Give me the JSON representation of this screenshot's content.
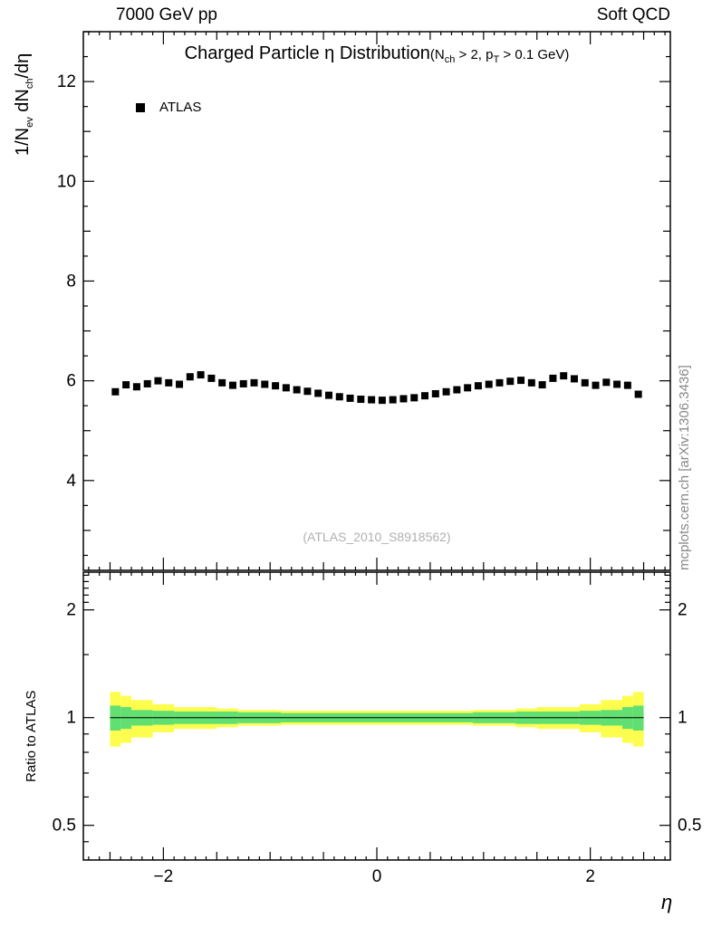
{
  "header": {
    "left": "7000 GeV pp",
    "right": "Soft QCD"
  },
  "credit": "mcplots.cern.ch [arXiv:1306.3436]",
  "watermark": "(ATLAS_2010_S8918562)",
  "xlabel": "η",
  "title": {
    "main": "Charged Particle η Distribution",
    "cut_p1": "(N",
    "cut_s1": "ch",
    "cut_p2": " > 2, p",
    "cut_s2": "T",
    "cut_p3": " > 0.1 GeV)"
  },
  "ylabel": {
    "p1": "1/N",
    "s1": "ev",
    "p2": " dN",
    "s2": "ch",
    "p3": "/dη"
  },
  "ratio_ylabel": "Ratio to ATLAS",
  "legend": {
    "atlas": "ATLAS"
  },
  "colors": {
    "marker": "#000000",
    "band_outer": "#fdfd4d",
    "band_inner": "#62df72",
    "frame": "#000000",
    "watermark": "#b0b0b0",
    "credit": "#888888"
  },
  "chart_data": {
    "type": "scatter",
    "title": "Charged Particle η Distribution (N_ch > 2, p_T > 0.1 GeV)",
    "xlabel": "η",
    "ylabel": "1/N_ev dN_ch/dη",
    "legend_entries": [
      "ATLAS"
    ],
    "grid": false,
    "xlim": [
      -2.75,
      2.75
    ],
    "xticks": [
      -2,
      0,
      2
    ],
    "main_panel": {
      "yscale": "linear",
      "ylim": [
        2.2,
        13.0
      ],
      "yticks": [
        4,
        6,
        8,
        10,
        12
      ],
      "series": [
        {
          "name": "ATLAS",
          "marker": "filled-square",
          "color": "#000000",
          "x": [
            -2.45,
            -2.35,
            -2.25,
            -2.15,
            -2.05,
            -1.95,
            -1.85,
            -1.75,
            -1.65,
            -1.55,
            -1.45,
            -1.35,
            -1.25,
            -1.15,
            -1.05,
            -0.95,
            -0.85,
            -0.75,
            -0.65,
            -0.55,
            -0.45,
            -0.35,
            -0.25,
            -0.15,
            -0.05,
            0.05,
            0.15,
            0.25,
            0.35,
            0.45,
            0.55,
            0.65,
            0.75,
            0.85,
            0.95,
            1.05,
            1.15,
            1.25,
            1.35,
            1.45,
            1.55,
            1.65,
            1.75,
            1.85,
            1.95,
            2.05,
            2.15,
            2.25,
            2.35,
            2.45
          ],
          "y": [
            5.78,
            5.92,
            5.88,
            5.94,
            6.0,
            5.96,
            5.93,
            6.08,
            6.12,
            6.05,
            5.96,
            5.91,
            5.94,
            5.96,
            5.93,
            5.9,
            5.86,
            5.82,
            5.79,
            5.75,
            5.71,
            5.68,
            5.65,
            5.63,
            5.62,
            5.61,
            5.62,
            5.64,
            5.66,
            5.7,
            5.74,
            5.78,
            5.82,
            5.86,
            5.9,
            5.93,
            5.96,
            5.99,
            6.01,
            5.96,
            5.92,
            6.05,
            6.1,
            6.04,
            5.96,
            5.91,
            5.97,
            5.93,
            5.91,
            5.73
          ]
        }
      ]
    },
    "ratio_panel": {
      "ylabel": "Ratio to ATLAS",
      "yscale": "log",
      "ylim": [
        0.4,
        2.55
      ],
      "yticks": [
        0.5,
        1,
        2
      ],
      "yticks_minor": [
        0.45,
        0.6,
        0.7,
        0.8,
        0.9,
        1.5,
        2.1,
        2.2,
        2.3,
        2.4,
        2.5
      ],
      "reference_line": 1.0,
      "bands": [
        {
          "name": "outer-uncertainty",
          "color": "#fdfd4d",
          "steps": [
            [
              -2.5,
              -2.4,
              0.83,
              1.18
            ],
            [
              -2.4,
              -2.3,
              0.85,
              1.15
            ],
            [
              -2.3,
              -2.1,
              0.88,
              1.12
            ],
            [
              -2.1,
              -1.9,
              0.91,
              1.09
            ],
            [
              -1.9,
              -1.5,
              0.93,
              1.07
            ],
            [
              -1.5,
              -1.3,
              0.94,
              1.06
            ],
            [
              -1.3,
              -0.9,
              0.95,
              1.05
            ],
            [
              -0.9,
              0.9,
              0.955,
              1.045
            ],
            [
              0.9,
              1.3,
              0.95,
              1.05
            ],
            [
              1.3,
              1.5,
              0.94,
              1.06
            ],
            [
              1.5,
              1.9,
              0.93,
              1.07
            ],
            [
              1.9,
              2.1,
              0.91,
              1.09
            ],
            [
              2.1,
              2.3,
              0.88,
              1.12
            ],
            [
              2.3,
              2.4,
              0.85,
              1.15
            ],
            [
              2.4,
              2.5,
              0.83,
              1.18
            ]
          ]
        },
        {
          "name": "inner-uncertainty",
          "color": "#62df72",
          "steps": [
            [
              -2.5,
              -2.4,
              0.92,
              1.08
            ],
            [
              -2.4,
              -2.3,
              0.93,
              1.07
            ],
            [
              -2.3,
              -2.1,
              0.95,
              1.05
            ],
            [
              -2.1,
              -1.9,
              0.955,
              1.045
            ],
            [
              -1.9,
              -1.3,
              0.96,
              1.04
            ],
            [
              -1.3,
              -0.9,
              0.965,
              1.035
            ],
            [
              -0.9,
              0.9,
              0.97,
              1.03
            ],
            [
              0.9,
              1.3,
              0.965,
              1.035
            ],
            [
              1.3,
              1.9,
              0.96,
              1.04
            ],
            [
              1.9,
              2.1,
              0.955,
              1.045
            ],
            [
              2.1,
              2.3,
              0.95,
              1.05
            ],
            [
              2.3,
              2.4,
              0.93,
              1.07
            ],
            [
              2.4,
              2.5,
              0.92,
              1.08
            ]
          ]
        }
      ]
    }
  }
}
